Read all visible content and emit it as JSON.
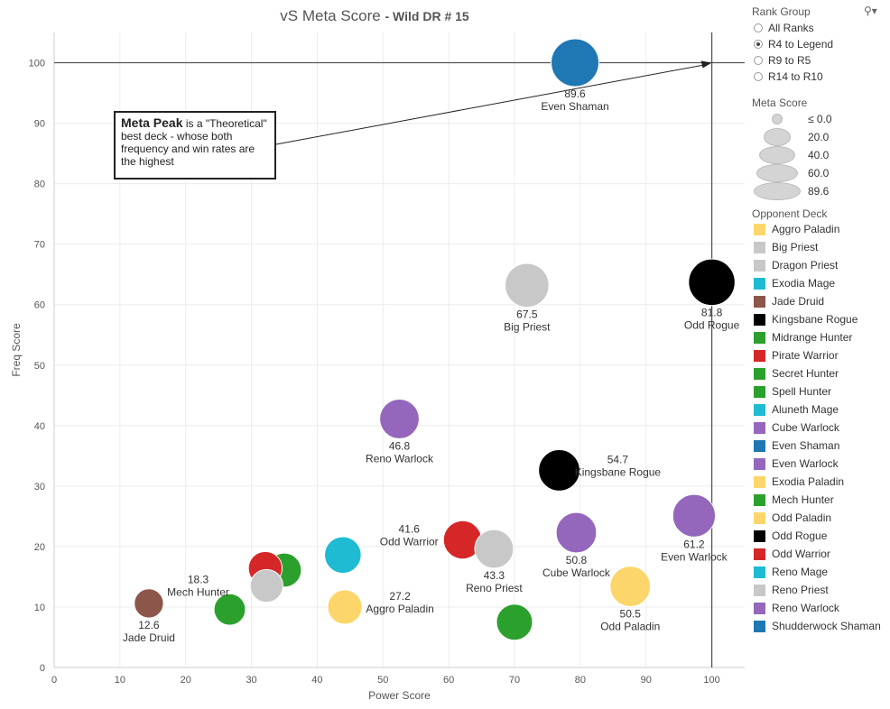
{
  "title": {
    "main": "vS Meta Score",
    "sub": "- Wild DR # 15"
  },
  "annotation": {
    "bold": "Meta Peak",
    "text": " is a \"Theoretical\" best deck - whose both frequency and win rates are the highest"
  },
  "legend": {
    "rank_group": {
      "title": "Rank Group",
      "options": [
        {
          "label": "All Ranks",
          "selected": false
        },
        {
          "label": "R4 to Legend",
          "selected": true
        },
        {
          "label": "R9 to R5",
          "selected": false
        },
        {
          "label": "R14 to R10",
          "selected": false
        }
      ]
    },
    "meta_score": {
      "title": "Meta Score",
      "labels": [
        "≤ 0.0",
        "20.0",
        "40.0",
        "60.0",
        "89.6"
      ]
    },
    "opponent_deck": {
      "title": "Opponent Deck",
      "items": [
        {
          "label": "Aggro Paladin",
          "color": "#fcd66a"
        },
        {
          "label": "Big Priest",
          "color": "#c8c8c8"
        },
        {
          "label": "Dragon Priest",
          "color": "#c8c8c8"
        },
        {
          "label": "Exodia Mage",
          "color": "#1ebbd2"
        },
        {
          "label": "Jade Druid",
          "color": "#8c564b"
        },
        {
          "label": "Kingsbane Rogue",
          "color": "#000000"
        },
        {
          "label": "Midrange Hunter",
          "color": "#2ca02c"
        },
        {
          "label": "Pirate Warrior",
          "color": "#d62728"
        },
        {
          "label": "Secret Hunter",
          "color": "#2ca02c"
        },
        {
          "label": "Spell Hunter",
          "color": "#2ca02c"
        },
        {
          "label": "Aluneth Mage",
          "color": "#1ebbd2"
        },
        {
          "label": "Cube Warlock",
          "color": "#9467bd"
        },
        {
          "label": "Even Shaman",
          "color": "#1f77b4"
        },
        {
          "label": "Even Warlock",
          "color": "#9467bd"
        },
        {
          "label": "Exodia Paladin",
          "color": "#fcd66a"
        },
        {
          "label": "Mech Hunter",
          "color": "#2ca02c"
        },
        {
          "label": "Odd Paladin",
          "color": "#fcd66a"
        },
        {
          "label": "Odd Rogue",
          "color": "#000000"
        },
        {
          "label": "Odd Warrior",
          "color": "#d62728"
        },
        {
          "label": "Reno Mage",
          "color": "#1ebbd2"
        },
        {
          "label": "Reno Priest",
          "color": "#c8c8c8"
        },
        {
          "label": "Reno Warlock",
          "color": "#9467bd"
        },
        {
          "label": "Shudderwock Shaman",
          "color": "#1f77b4"
        }
      ]
    }
  },
  "chart_data": {
    "type": "scatter",
    "xlabel": "Power Score",
    "ylabel": "Freq Score",
    "xlim": [
      0,
      105
    ],
    "ylim": [
      0,
      105
    ],
    "xticks": [
      0,
      10,
      20,
      30,
      40,
      50,
      60,
      70,
      80,
      90,
      100
    ],
    "yticks": [
      0,
      10,
      20,
      30,
      40,
      50,
      60,
      70,
      80,
      90,
      100
    ],
    "grid": true,
    "reference_lines": {
      "x": 100,
      "y": 100
    },
    "points": [
      {
        "deck": "Even Shaman",
        "x": 79.2,
        "y": 100,
        "meta": 89.6,
        "color": "#1f77b4",
        "label": "Even Shaman",
        "value_label": "89.6",
        "label_pos": "below"
      },
      {
        "deck": "Big Priest",
        "x": 71.9,
        "y": 63.2,
        "meta": 67.5,
        "color": "#c8c8c8",
        "label": "Big Priest",
        "value_label": "67.5",
        "label_pos": "below"
      },
      {
        "deck": "Odd Rogue",
        "x": 100,
        "y": 63.7,
        "meta": 81.8,
        "color": "#000000",
        "label": "Odd Rogue",
        "value_label": "81.8",
        "label_pos": "below"
      },
      {
        "deck": "Reno Warlock",
        "x": 52.5,
        "y": 41.1,
        "meta": 46.8,
        "color": "#9467bd",
        "label": "Reno Warlock",
        "value_label": "46.8",
        "label_pos": "below"
      },
      {
        "deck": "Kingsbane Rogue",
        "x": 76.8,
        "y": 32.6,
        "meta": 54.7,
        "color": "#000000",
        "label": "Kingsbane Rogue",
        "value_label": "54.7",
        "label_pos": "right"
      },
      {
        "deck": "Even Warlock",
        "x": 97.3,
        "y": 25.1,
        "meta": 61.2,
        "color": "#9467bd",
        "label": "Even Warlock",
        "value_label": "61.2",
        "label_pos": "below"
      },
      {
        "deck": "Cube Warlock",
        "x": 79.4,
        "y": 22.3,
        "meta": 50.8,
        "color": "#9467bd",
        "label": "Cube Warlock",
        "value_label": "50.8",
        "label_pos": "below"
      },
      {
        "deck": "Odd Warrior",
        "x": 62.1,
        "y": 21.1,
        "meta": 41.6,
        "color": "#d62728",
        "label": "Odd Warrior",
        "value_label": "41.6",
        "label_pos": "left"
      },
      {
        "deck": "Reno Priest",
        "x": 66.9,
        "y": 19.6,
        "meta": 43.3,
        "color": "#c8c8c8",
        "label": "Reno Priest",
        "value_label": "43.3",
        "label_pos": "below"
      },
      {
        "deck": "Reno Mage",
        "x": 43.9,
        "y": 18.6,
        "meta": 35.0,
        "color": "#1ebbd2",
        "label": "",
        "value_label": "",
        "label_pos": "none"
      },
      {
        "deck": "Odd Paladin",
        "x": 87.6,
        "y": 13.4,
        "meta": 50.5,
        "color": "#fcd66a",
        "label": "Odd Paladin",
        "value_label": "50.5",
        "label_pos": "below"
      },
      {
        "deck": "Secret Hunter",
        "x": 35.0,
        "y": 16.1,
        "meta": 26.0,
        "color": "#2ca02c",
        "label": "",
        "value_label": "",
        "label_pos": "none"
      },
      {
        "deck": "Pirate Warrior",
        "x": 32.1,
        "y": 16.4,
        "meta": 25.0,
        "color": "#d62728",
        "label": "",
        "value_label": "",
        "label_pos": "none"
      },
      {
        "deck": "Dragon Priest",
        "x": 32.3,
        "y": 13.5,
        "meta": 22.0,
        "color": "#c8c8c8",
        "label": "",
        "value_label": "",
        "label_pos": "none"
      },
      {
        "deck": "Mech Hunter",
        "x": 26.7,
        "y": 9.6,
        "meta": 18.3,
        "color": "#2ca02c",
        "label": "Mech Hunter",
        "value_label": "18.3",
        "label_pos": "upleft"
      },
      {
        "deck": "Aggro Paladin",
        "x": 44.2,
        "y": 10.0,
        "meta": 27.2,
        "color": "#fcd66a",
        "label": "Aggro Paladin",
        "value_label": "27.2",
        "label_pos": "right"
      },
      {
        "deck": "Jade Druid",
        "x": 14.4,
        "y": 10.6,
        "meta": 12.6,
        "color": "#8c564b",
        "label": "Jade Druid",
        "value_label": "12.6",
        "label_pos": "below"
      },
      {
        "deck": "Spell Hunter",
        "x": 70.0,
        "y": 7.5,
        "meta": 33.0,
        "color": "#2ca02c",
        "label": "",
        "value_label": "",
        "label_pos": "none"
      }
    ]
  }
}
